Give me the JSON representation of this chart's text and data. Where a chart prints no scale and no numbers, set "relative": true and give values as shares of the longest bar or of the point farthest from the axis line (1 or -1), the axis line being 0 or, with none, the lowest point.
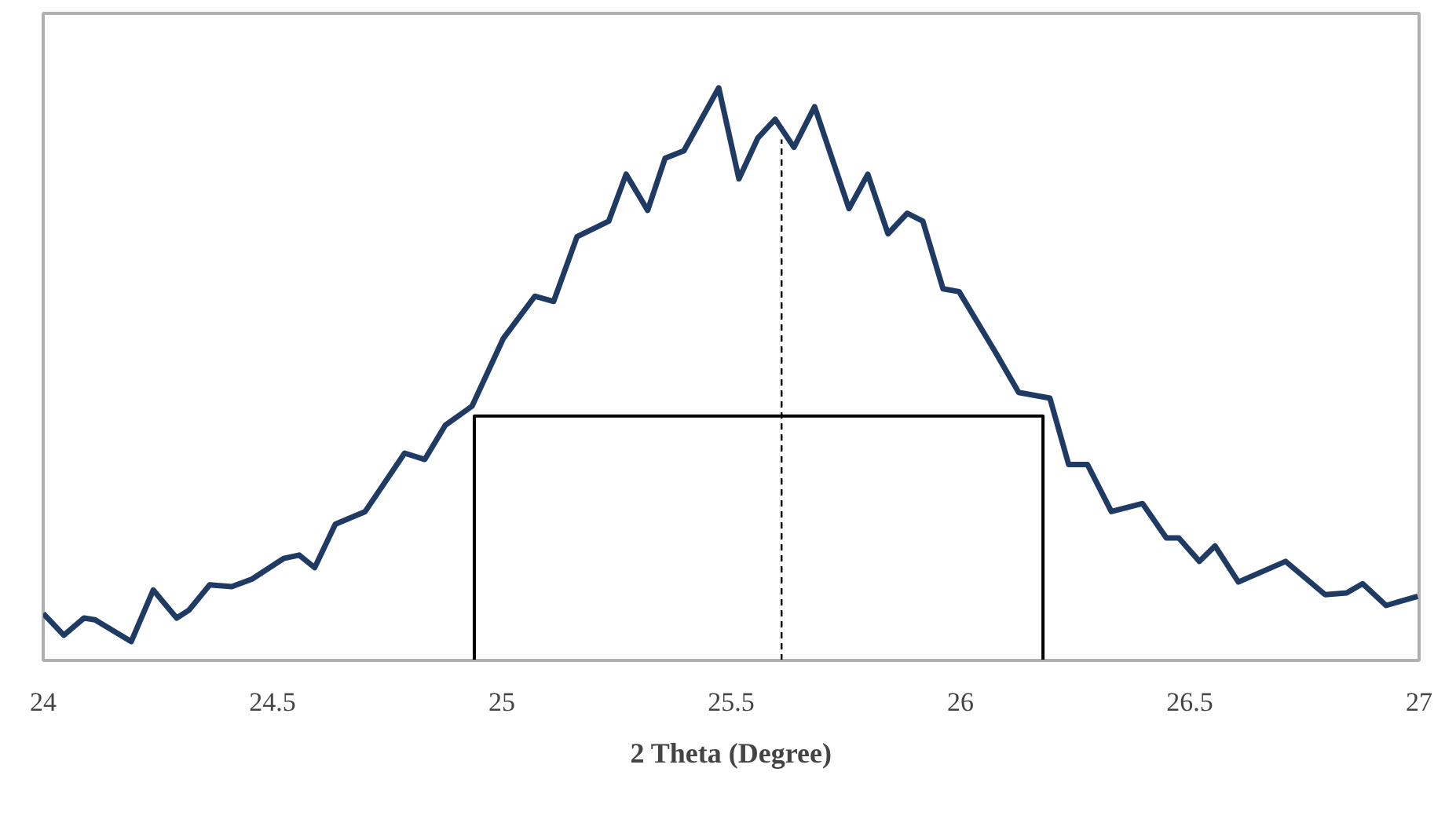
{
  "chart_data": {
    "type": "line",
    "relative": true,
    "xlabel": "2 Theta (Degree)",
    "xlim": [
      24,
      27
    ],
    "xticks": [
      24,
      24.5,
      25,
      25.5,
      26,
      26.5,
      27
    ],
    "grid": false,
    "marker": "none",
    "series": [
      {
        "color": "#1f3b63",
        "line_style": "solid",
        "x": [
          24.0,
          24.045,
          24.089,
          24.113,
          24.192,
          24.24,
          24.291,
          24.318,
          24.363,
          24.411,
          24.455,
          24.524,
          24.558,
          24.592,
          24.637,
          24.702,
          24.788,
          24.832,
          24.877,
          24.935,
          25.003,
          25.072,
          25.113,
          25.164,
          25.233,
          25.271,
          25.318,
          25.356,
          25.397,
          25.473,
          25.517,
          25.558,
          25.596,
          25.637,
          25.682,
          25.757,
          25.798,
          25.842,
          25.884,
          25.918,
          25.962,
          25.997,
          26.075,
          26.127,
          26.195,
          26.236,
          26.277,
          26.329,
          26.397,
          26.449,
          26.476,
          26.521,
          26.555,
          26.606,
          26.709,
          26.795,
          26.842,
          26.877,
          26.928,
          26.997
        ],
        "values": [
          0.082,
          0.044,
          0.074,
          0.071,
          0.033,
          0.123,
          0.074,
          0.088,
          0.132,
          0.129,
          0.142,
          0.178,
          0.184,
          0.162,
          0.238,
          0.26,
          0.362,
          0.351,
          0.411,
          0.444,
          0.562,
          0.636,
          0.627,
          0.74,
          0.767,
          0.849,
          0.786,
          0.877,
          0.89,
          1.0,
          0.841,
          0.912,
          0.945,
          0.896,
          0.967,
          0.789,
          0.849,
          0.745,
          0.781,
          0.767,
          0.649,
          0.644,
          0.54,
          0.468,
          0.458,
          0.342,
          0.342,
          0.26,
          0.274,
          0.214,
          0.214,
          0.173,
          0.2,
          0.137,
          0.173,
          0.115,
          0.118,
          0.134,
          0.096,
          0.112
        ]
      },
      {
        "color": "#000000",
        "line_style": "solid",
        "x": [
          24.94,
          24.94,
          26.18,
          26.18
        ],
        "values": [
          0,
          0.427,
          0.427,
          0
        ]
      },
      {
        "color": "#000000",
        "line_style": "dashed",
        "x": [
          25.61,
          25.61
        ],
        "values": [
          0,
          0.91
        ]
      }
    ]
  }
}
